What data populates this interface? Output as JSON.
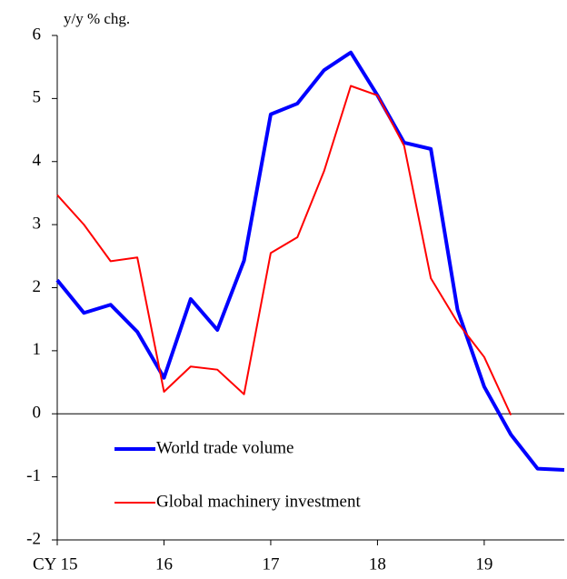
{
  "chart_data": {
    "type": "line",
    "y_label": "y/y % chg.",
    "x": [
      15,
      15.25,
      15.5,
      15.75,
      16,
      16.25,
      16.5,
      16.75,
      17,
      17.25,
      17.5,
      17.75,
      18,
      18.25,
      18.5,
      18.75,
      19,
      19.25,
      19.5,
      19.75
    ],
    "series": [
      {
        "name": "World trade volume",
        "color": "#0000ff",
        "values": [
          2.12,
          1.6,
          1.73,
          1.3,
          0.57,
          1.82,
          1.33,
          2.43,
          4.75,
          4.92,
          5.45,
          5.73,
          5.05,
          4.3,
          4.2,
          1.65,
          0.43,
          -0.33,
          -0.87,
          -0.89
        ]
      },
      {
        "name": "Global machinery investment",
        "color": "#ff0000",
        "values": [
          3.47,
          3.0,
          2.42,
          2.48,
          0.35,
          0.75,
          0.7,
          0.31,
          2.55,
          2.8,
          3.85,
          5.2,
          5.05,
          4.25,
          2.15,
          1.45,
          0.9,
          -0.02,
          null,
          null
        ]
      }
    ],
    "xlim": [
      15,
      19.75
    ],
    "xticks": [
      {
        "value": 15,
        "label": "CY 15"
      },
      16,
      17,
      18,
      19
    ],
    "ylim": [
      -2,
      6
    ],
    "yticks": [
      -2,
      -1,
      0,
      1,
      2,
      3,
      4,
      5,
      6
    ]
  }
}
